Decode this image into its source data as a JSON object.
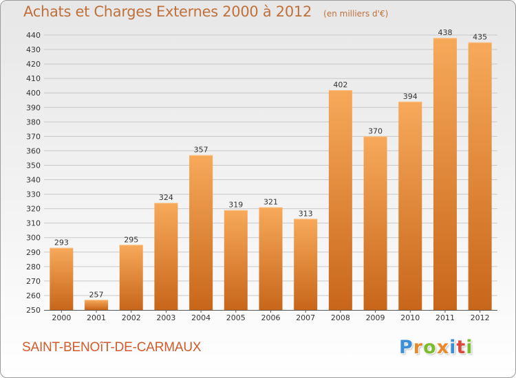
{
  "header": {
    "title": "Achats et Charges Externes 2000 à 2012",
    "subtitle": "(en milliers d'€)"
  },
  "footer": {
    "commune": "SAINT-BENOîT-DE-CARMAUX",
    "brand": "Proxiti",
    "brand_colors": [
      "#3a8fd8",
      "#e8892c",
      "#7dbb2f",
      "#e8892c",
      "#3a8fd8",
      "#d94a3a",
      "#7dbb2f"
    ]
  },
  "colors": {
    "bar_top": "#f7a95a",
    "bar_bottom": "#c8661a",
    "grid": "#c8c8c8",
    "axis_text": "#333333"
  },
  "chart_data": {
    "type": "bar",
    "title": "Achats et Charges Externes 2000 à 2012",
    "subtitle": "(en milliers d'€)",
    "categories": [
      "2000",
      "2001",
      "2002",
      "2003",
      "2004",
      "2005",
      "2006",
      "2007",
      "2008",
      "2009",
      "2010",
      "2011",
      "2012"
    ],
    "values": [
      293,
      257,
      295,
      324,
      357,
      319,
      321,
      313,
      402,
      370,
      394,
      438,
      435
    ],
    "ylim": [
      250,
      440
    ],
    "yticks": [
      250,
      260,
      270,
      280,
      290,
      300,
      310,
      320,
      330,
      340,
      350,
      360,
      370,
      380,
      390,
      400,
      410,
      420,
      430,
      440
    ],
    "grid": true,
    "data_labels": true,
    "xlabel": "",
    "ylabel": ""
  }
}
